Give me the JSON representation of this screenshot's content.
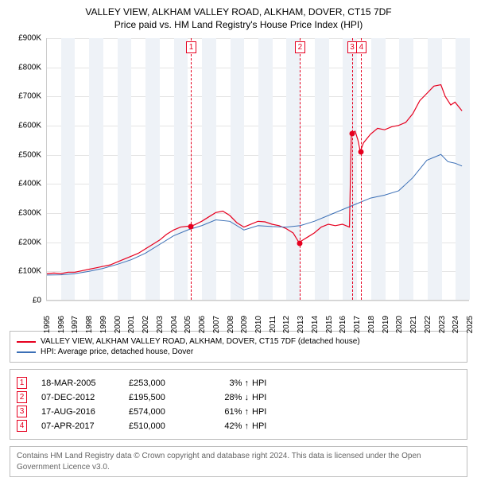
{
  "title": {
    "main": "VALLEY VIEW, ALKHAM VALLEY ROAD, ALKHAM, DOVER, CT15 7DF",
    "sub": "Price paid vs. HM Land Registry's House Price Index (HPI)"
  },
  "chart": {
    "type": "line",
    "background_color": "#ffffff",
    "grid_color": "#e4e4e4",
    "band_color": "#eef2f7",
    "dashed_color": "#e6001f",
    "xlim": [
      1995,
      2025
    ],
    "ylim": [
      0,
      900000
    ],
    "ytick_step": 100000,
    "ytick_labels": [
      "£0",
      "£100K",
      "£200K",
      "£300K",
      "£400K",
      "£500K",
      "£600K",
      "£700K",
      "£800K",
      "£900K"
    ],
    "xtick_step": 1,
    "xtick_labels": [
      "1995",
      "1996",
      "1997",
      "1998",
      "1999",
      "2000",
      "2001",
      "2002",
      "2003",
      "2004",
      "2005",
      "2006",
      "2007",
      "2008",
      "2009",
      "2010",
      "2011",
      "2012",
      "2013",
      "2014",
      "2015",
      "2016",
      "2017",
      "2018",
      "2019",
      "2020",
      "2021",
      "2022",
      "2023",
      "2024",
      "2025"
    ],
    "band_years": [
      1996,
      1998,
      2000,
      2002,
      2004,
      2006,
      2008,
      2010,
      2012,
      2014,
      2016,
      2018,
      2020,
      2022,
      2024
    ],
    "series": [
      {
        "name": "property",
        "color": "#e6001f",
        "width": 1.2,
        "points": [
          [
            1995.0,
            90000
          ],
          [
            1995.5,
            92000
          ],
          [
            1996.0,
            90000
          ],
          [
            1996.5,
            95000
          ],
          [
            1997.0,
            95000
          ],
          [
            1997.5,
            100000
          ],
          [
            1998.0,
            105000
          ],
          [
            1998.5,
            110000
          ],
          [
            1999.0,
            115000
          ],
          [
            1999.5,
            120000
          ],
          [
            2000.0,
            130000
          ],
          [
            2000.5,
            140000
          ],
          [
            2001.0,
            150000
          ],
          [
            2001.5,
            160000
          ],
          [
            2002.0,
            175000
          ],
          [
            2002.5,
            190000
          ],
          [
            2003.0,
            205000
          ],
          [
            2003.5,
            225000
          ],
          [
            2004.0,
            240000
          ],
          [
            2004.5,
            250000
          ],
          [
            2005.0,
            253000
          ],
          [
            2005.21,
            253000
          ],
          [
            2005.5,
            258000
          ],
          [
            2006.0,
            270000
          ],
          [
            2006.5,
            285000
          ],
          [
            2007.0,
            300000
          ],
          [
            2007.5,
            305000
          ],
          [
            2008.0,
            290000
          ],
          [
            2008.5,
            265000
          ],
          [
            2009.0,
            250000
          ],
          [
            2009.5,
            260000
          ],
          [
            2010.0,
            270000
          ],
          [
            2010.5,
            268000
          ],
          [
            2011.0,
            260000
          ],
          [
            2011.5,
            255000
          ],
          [
            2012.0,
            245000
          ],
          [
            2012.5,
            230000
          ],
          [
            2012.93,
            195500
          ],
          [
            2013.0,
            200000
          ],
          [
            2013.5,
            215000
          ],
          [
            2014.0,
            230000
          ],
          [
            2014.5,
            250000
          ],
          [
            2015.0,
            260000
          ],
          [
            2015.5,
            255000
          ],
          [
            2016.0,
            260000
          ],
          [
            2016.5,
            250000
          ],
          [
            2016.63,
            574000
          ],
          [
            2016.7,
            574000
          ],
          [
            2016.9,
            580000
          ],
          [
            2017.1,
            550000
          ],
          [
            2017.27,
            510000
          ],
          [
            2017.5,
            540000
          ],
          [
            2018.0,
            570000
          ],
          [
            2018.5,
            590000
          ],
          [
            2019.0,
            585000
          ],
          [
            2019.5,
            595000
          ],
          [
            2020.0,
            600000
          ],
          [
            2020.5,
            610000
          ],
          [
            2021.0,
            640000
          ],
          [
            2021.5,
            685000
          ],
          [
            2022.0,
            710000
          ],
          [
            2022.5,
            735000
          ],
          [
            2023.0,
            740000
          ],
          [
            2023.3,
            700000
          ],
          [
            2023.7,
            670000
          ],
          [
            2024.0,
            680000
          ],
          [
            2024.5,
            650000
          ]
        ]
      },
      {
        "name": "hpi",
        "color": "#3b6fb6",
        "width": 1.0,
        "points": [
          [
            1995.0,
            85000
          ],
          [
            1996.0,
            86000
          ],
          [
            1997.0,
            90000
          ],
          [
            1998.0,
            98000
          ],
          [
            1999.0,
            108000
          ],
          [
            2000.0,
            122000
          ],
          [
            2001.0,
            138000
          ],
          [
            2002.0,
            160000
          ],
          [
            2003.0,
            190000
          ],
          [
            2004.0,
            220000
          ],
          [
            2005.0,
            240000
          ],
          [
            2006.0,
            255000
          ],
          [
            2007.0,
            275000
          ],
          [
            2008.0,
            270000
          ],
          [
            2009.0,
            240000
          ],
          [
            2010.0,
            255000
          ],
          [
            2011.0,
            252000
          ],
          [
            2012.0,
            250000
          ],
          [
            2013.0,
            255000
          ],
          [
            2014.0,
            270000
          ],
          [
            2015.0,
            290000
          ],
          [
            2016.0,
            310000
          ],
          [
            2017.0,
            330000
          ],
          [
            2018.0,
            350000
          ],
          [
            2019.0,
            360000
          ],
          [
            2020.0,
            375000
          ],
          [
            2021.0,
            420000
          ],
          [
            2022.0,
            480000
          ],
          [
            2023.0,
            500000
          ],
          [
            2023.5,
            475000
          ],
          [
            2024.0,
            470000
          ],
          [
            2024.5,
            460000
          ]
        ]
      }
    ],
    "markers": [
      {
        "num": "1",
        "x": 2005.21,
        "y": 253000
      },
      {
        "num": "2",
        "x": 2012.93,
        "y": 195500
      },
      {
        "num": "3",
        "x": 2016.63,
        "y": 574000
      },
      {
        "num": "4",
        "x": 2017.27,
        "y": 510000
      }
    ]
  },
  "legend": {
    "items": [
      {
        "color": "#e6001f",
        "label": "VALLEY VIEW, ALKHAM VALLEY ROAD, ALKHAM, DOVER, CT15 7DF (detached house)"
      },
      {
        "color": "#3b6fb6",
        "label": "HPI: Average price, detached house, Dover"
      }
    ]
  },
  "events": [
    {
      "num": "1",
      "date": "18-MAR-2005",
      "price": "£253,000",
      "delta": "3%",
      "arrow": "↑",
      "hpi": "HPI"
    },
    {
      "num": "2",
      "date": "07-DEC-2012",
      "price": "£195,500",
      "delta": "28%",
      "arrow": "↓",
      "hpi": "HPI"
    },
    {
      "num": "3",
      "date": "17-AUG-2016",
      "price": "£574,000",
      "delta": "61%",
      "arrow": "↑",
      "hpi": "HPI"
    },
    {
      "num": "4",
      "date": "07-APR-2017",
      "price": "£510,000",
      "delta": "42%",
      "arrow": "↑",
      "hpi": "HPI"
    }
  ],
  "footer": "Contains HM Land Registry data © Crown copyright and database right 2024. This data is licensed under the Open Government Licence v3.0."
}
